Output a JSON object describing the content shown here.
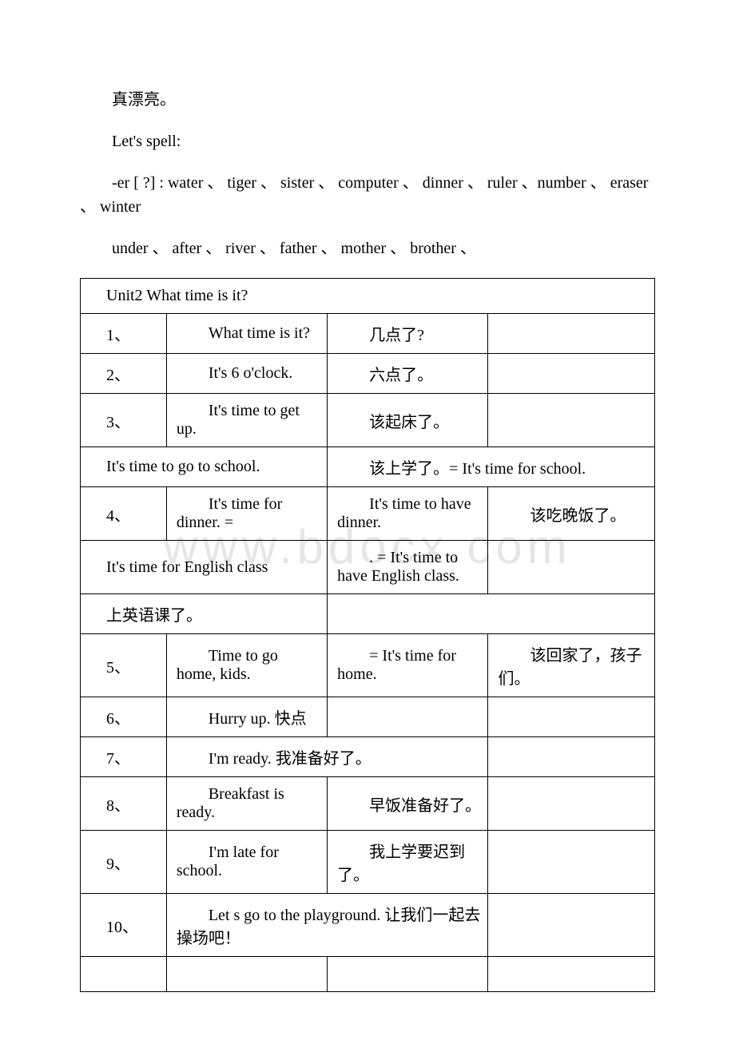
{
  "watermark": "www.bdocx.com",
  "p1": "真漂亮。",
  "p2": "Let's spell:",
  "p3": "-er [ ?] : water 、 tiger 、 sister 、 computer 、 dinner 、 ruler 、number 、 eraser 、 winter",
  "p4": "under 、 after 、 river 、 father 、 mother 、 brother 、",
  "table": {
    "header": "Unit2 What time is it?",
    "r1": {
      "n": "1、",
      "a": "What time is it?",
      "b": "几点了?",
      "c": ""
    },
    "r2": {
      "n": "2、",
      "a": "It's 6 o'clock.",
      "b": "六点了。",
      "c": ""
    },
    "r3": {
      "n": "3、",
      "a": "It's time to get up.",
      "b": "该起床了。",
      "c": ""
    },
    "r4": {
      "a": "It's time to go to school.",
      "b": "该上学了。= It's time for school."
    },
    "r5": {
      "n": "4、",
      "a": "It's time for dinner. =",
      "b": "It's time to have dinner.",
      "c": "该吃晚饭了。"
    },
    "r6": {
      "a": "It's time for English class",
      "b": ". = It's time to have English class."
    },
    "r7": {
      "a": "上英语课了。",
      "b": ""
    },
    "r8": {
      "n": "5、",
      "a": "Time to go home, kids.",
      "b": "= It's time for home.",
      "c": "该回家了，孩子们。"
    },
    "r9": {
      "n": "6、",
      "a": "Hurry up. 快点",
      "b": "",
      "c": ""
    },
    "r10": {
      "n": "7、",
      "a": "I'm ready. 我准备好了。",
      "c": ""
    },
    "r11": {
      "n": "8、",
      "a": "Breakfast is ready.",
      "b": "早饭准备好了。",
      "c": ""
    },
    "r12": {
      "n": "9、",
      "a": "I'm late for school.",
      "b": "我上学要迟到了。",
      "c": ""
    },
    "r13": {
      "n": "10、",
      "a": "Let s go to the playground. 让我们一起去操场吧！",
      "c": ""
    }
  }
}
